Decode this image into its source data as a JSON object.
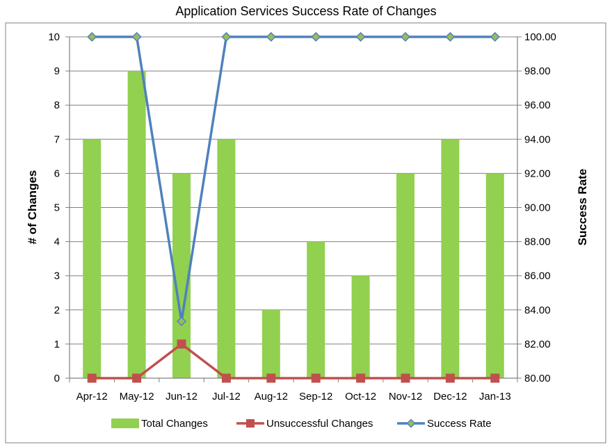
{
  "chart_data": {
    "type": "bar",
    "title": "Application Services Success Rate of Changes",
    "categories": [
      "Apr-12",
      "May-12",
      "Jun-12",
      "Jul-12",
      "Aug-12",
      "Sep-12",
      "Oct-12",
      "Nov-12",
      "Dec-12",
      "Jan-13"
    ],
    "series": [
      {
        "name": "Total Changes",
        "kind": "bar",
        "axis": "left",
        "color": "#92d050",
        "values": [
          7,
          9,
          6,
          7,
          2,
          4,
          3,
          6,
          7,
          6
        ]
      },
      {
        "name": "Unsuccessful Changes",
        "kind": "line",
        "marker": "square",
        "axis": "left",
        "color": "#c0504d",
        "values": [
          0,
          0,
          1,
          0,
          0,
          0,
          0,
          0,
          0,
          0
        ]
      },
      {
        "name": "Success Rate",
        "kind": "line",
        "marker": "diamond",
        "axis": "right",
        "color": "#4f81bd",
        "marker_fill": "#9bbb59",
        "values": [
          100.0,
          100.0,
          83.33,
          100.0,
          100.0,
          100.0,
          100.0,
          100.0,
          100.0,
          100.0
        ]
      }
    ],
    "ylabel": "# of Changes",
    "y2label": "Success Rate",
    "ylim": [
      0,
      10
    ],
    "y2lim": [
      80,
      100
    ],
    "yticks": [
      "0",
      "1",
      "2",
      "3",
      "4",
      "5",
      "6",
      "7",
      "8",
      "9",
      "10"
    ],
    "y2ticks": [
      "80.00",
      "82.00",
      "84.00",
      "86.00",
      "88.00",
      "90.00",
      "92.00",
      "94.00",
      "96.00",
      "98.00",
      "100.00"
    ],
    "grid": true,
    "legend_position": "bottom"
  }
}
